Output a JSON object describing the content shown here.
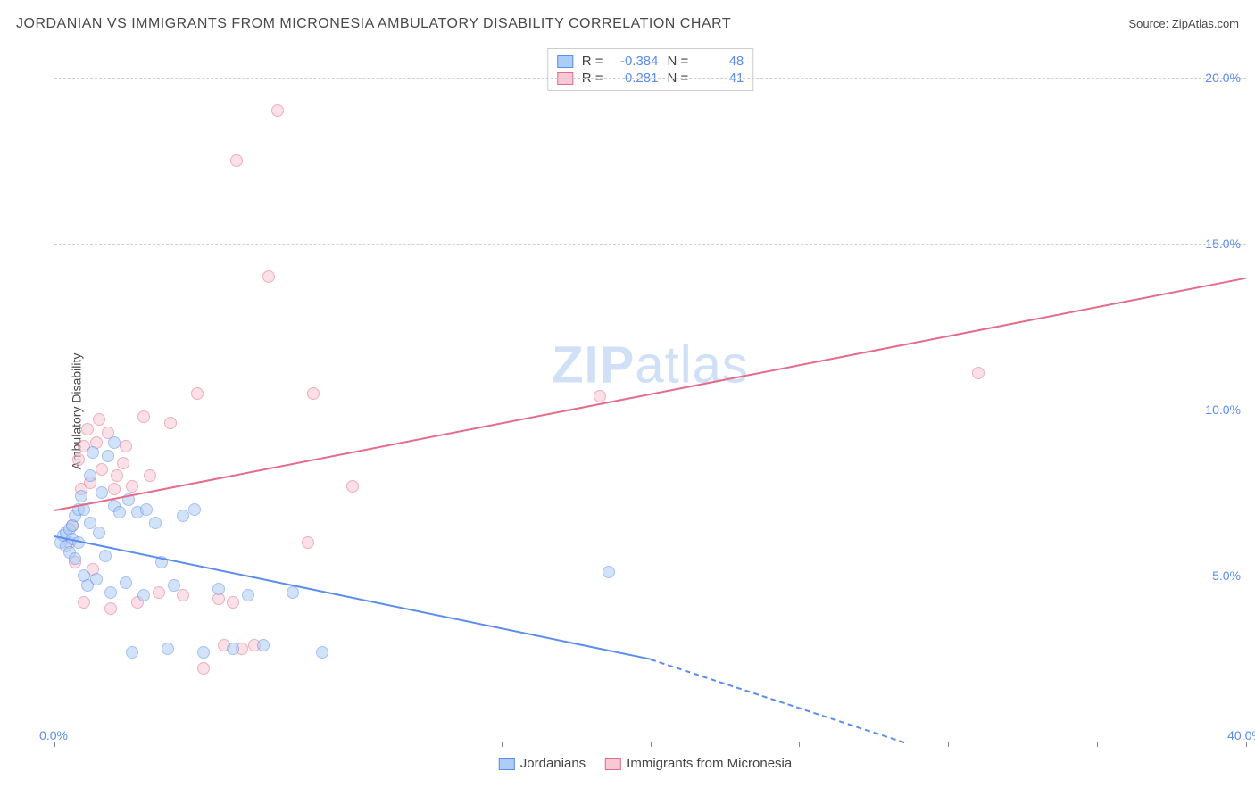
{
  "header": {
    "title": "JORDANIAN VS IMMIGRANTS FROM MICRONESIA AMBULATORY DISABILITY CORRELATION CHART",
    "source": "Source: ZipAtlas.com"
  },
  "ylabel": "Ambulatory Disability",
  "watermark": {
    "bold": "ZIP",
    "rest": "atlas"
  },
  "chart": {
    "type": "scatter",
    "xlim": [
      0,
      40
    ],
    "ylim": [
      0,
      21
    ],
    "xtick_positions": [
      0,
      5,
      10,
      15,
      20,
      25,
      30,
      35,
      40
    ],
    "xtick_labels": {
      "0": "0.0%",
      "40": "40.0%"
    },
    "ytick_positions": [
      5,
      10,
      15,
      20
    ],
    "ytick_labels": {
      "5": "5.0%",
      "10": "10.0%",
      "15": "15.0%",
      "20": "20.0%"
    },
    "grid_color": "#d0d0d0",
    "background_color": "#ffffff",
    "axis_color": "#888888",
    "tick_label_color": "#5b8def",
    "label_color": "#4a4a4a",
    "label_fontsize": 14,
    "title_fontsize": 16,
    "marker_radius": 7,
    "marker_opacity": 0.55,
    "line_width": 2
  },
  "series": {
    "blue": {
      "label": "Jordanians",
      "fill_color": "#aecdf5",
      "stroke_color": "#5b8def",
      "R": "-0.384",
      "N": "48",
      "trend": {
        "x1": 0,
        "y1": 6.2,
        "x2": 20,
        "y2": 2.5,
        "extend_x": 28.5,
        "extend_y": 0.0
      },
      "points": [
        [
          0.2,
          6.0
        ],
        [
          0.3,
          6.2
        ],
        [
          0.4,
          5.9
        ],
        [
          0.4,
          6.3
        ],
        [
          0.5,
          6.4
        ],
        [
          0.5,
          5.7
        ],
        [
          0.6,
          6.1
        ],
        [
          0.6,
          6.5
        ],
        [
          0.7,
          5.5
        ],
        [
          0.7,
          6.8
        ],
        [
          0.8,
          6.0
        ],
        [
          0.8,
          7.0
        ],
        [
          0.9,
          7.4
        ],
        [
          1.0,
          5.0
        ],
        [
          1.0,
          7.0
        ],
        [
          1.1,
          4.7
        ],
        [
          1.2,
          8.0
        ],
        [
          1.2,
          6.6
        ],
        [
          1.3,
          8.7
        ],
        [
          1.4,
          4.9
        ],
        [
          1.5,
          6.3
        ],
        [
          1.6,
          7.5
        ],
        [
          1.7,
          5.6
        ],
        [
          1.8,
          8.6
        ],
        [
          1.9,
          4.5
        ],
        [
          2.0,
          9.0
        ],
        [
          2.0,
          7.1
        ],
        [
          2.2,
          6.9
        ],
        [
          2.4,
          4.8
        ],
        [
          2.5,
          7.3
        ],
        [
          2.6,
          2.7
        ],
        [
          2.8,
          6.9
        ],
        [
          3.0,
          4.4
        ],
        [
          3.1,
          7.0
        ],
        [
          3.4,
          6.6
        ],
        [
          3.6,
          5.4
        ],
        [
          3.8,
          2.8
        ],
        [
          4.0,
          4.7
        ],
        [
          4.3,
          6.8
        ],
        [
          4.7,
          7.0
        ],
        [
          5.0,
          2.7
        ],
        [
          5.5,
          4.6
        ],
        [
          6.0,
          2.8
        ],
        [
          6.5,
          4.4
        ],
        [
          7.0,
          2.9
        ],
        [
          8.0,
          4.5
        ],
        [
          9.0,
          2.7
        ],
        [
          18.6,
          5.1
        ]
      ]
    },
    "pink": {
      "label": "Immigrants from Micronesia",
      "fill_color": "#f7c9d4",
      "stroke_color": "#e56b8a",
      "R": "0.281",
      "N": "41",
      "trend": {
        "x1": 0,
        "y1": 7.0,
        "x2": 40,
        "y2": 14.0
      },
      "points": [
        [
          0.5,
          6.0
        ],
        [
          0.6,
          6.5
        ],
        [
          0.7,
          5.4
        ],
        [
          0.8,
          8.5
        ],
        [
          0.9,
          7.6
        ],
        [
          1.0,
          8.9
        ],
        [
          1.0,
          4.2
        ],
        [
          1.1,
          9.4
        ],
        [
          1.2,
          7.8
        ],
        [
          1.3,
          5.2
        ],
        [
          1.4,
          9.0
        ],
        [
          1.5,
          9.7
        ],
        [
          1.6,
          8.2
        ],
        [
          1.8,
          9.3
        ],
        [
          1.9,
          4.0
        ],
        [
          2.0,
          7.6
        ],
        [
          2.1,
          8.0
        ],
        [
          2.3,
          8.4
        ],
        [
          2.4,
          8.9
        ],
        [
          2.6,
          7.7
        ],
        [
          2.8,
          4.2
        ],
        [
          3.0,
          9.8
        ],
        [
          3.2,
          8.0
        ],
        [
          3.5,
          4.5
        ],
        [
          3.9,
          9.6
        ],
        [
          4.3,
          4.4
        ],
        [
          4.8,
          10.5
        ],
        [
          5.0,
          2.2
        ],
        [
          5.5,
          4.3
        ],
        [
          5.7,
          2.9
        ],
        [
          6.0,
          4.2
        ],
        [
          6.1,
          17.5
        ],
        [
          6.3,
          2.8
        ],
        [
          6.7,
          2.9
        ],
        [
          7.2,
          14.0
        ],
        [
          7.5,
          19.0
        ],
        [
          8.5,
          6.0
        ],
        [
          8.7,
          10.5
        ],
        [
          10.0,
          7.7
        ],
        [
          18.3,
          10.4
        ],
        [
          31.0,
          11.1
        ]
      ]
    }
  },
  "legend_top": {
    "r_label": "R =",
    "n_label": "N ="
  }
}
